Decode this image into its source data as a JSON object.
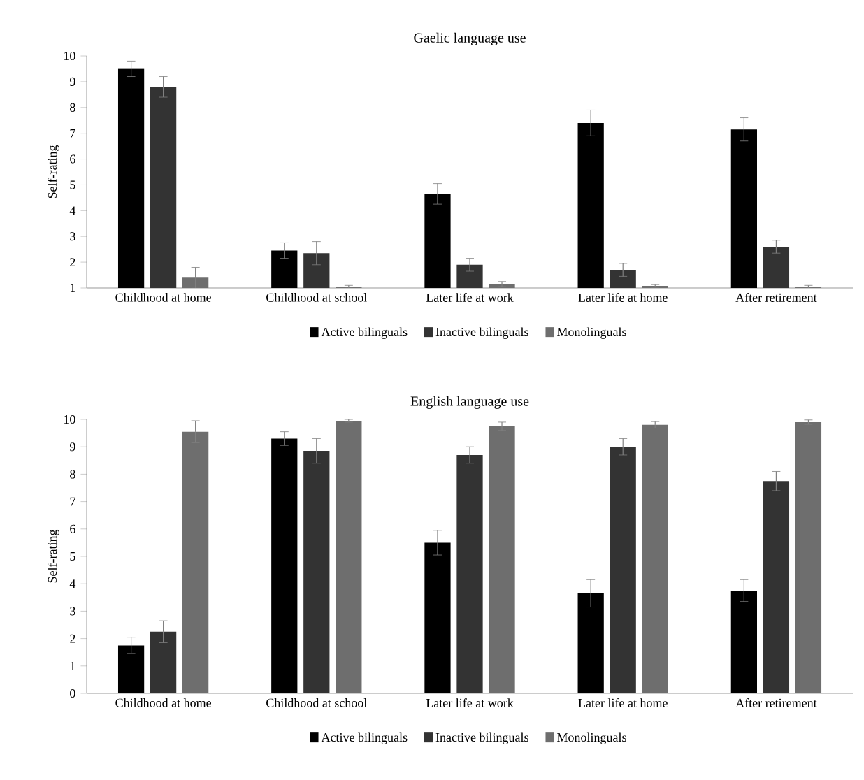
{
  "chart_data": [
    {
      "type": "bar",
      "title": "Gaelic language use",
      "ylabel": "Self-rating",
      "categories": [
        "Childhood at home",
        "Childhood at school",
        "Later life at work",
        "Later life at home",
        "After retirement"
      ],
      "series": [
        {
          "name": "Active bilinguals",
          "color": "#000000",
          "values": [
            9.5,
            2.45,
            4.65,
            7.4,
            7.15
          ],
          "errors": [
            0.3,
            0.3,
            0.4,
            0.5,
            0.45
          ]
        },
        {
          "name": "Inactive bilinguals",
          "color": "#333333",
          "values": [
            8.8,
            2.35,
            1.9,
            1.7,
            2.6
          ],
          "errors": [
            0.4,
            0.45,
            0.25,
            0.25,
            0.25
          ]
        },
        {
          "name": "Monolinguals",
          "color": "#6e6e6e",
          "values": [
            1.4,
            1.05,
            1.15,
            1.08,
            1.05
          ],
          "errors": [
            0.4,
            0.05,
            0.1,
            0.05,
            0.05
          ]
        }
      ],
      "ylim": [
        1,
        10
      ],
      "yticks": [
        1,
        2,
        3,
        4,
        5,
        6,
        7,
        8,
        9,
        10
      ],
      "legend": "bottom"
    },
    {
      "type": "bar",
      "title": "English language use",
      "ylabel": "Self-rating",
      "categories": [
        "Childhood at home",
        "Childhood at school",
        "Later life at work",
        "Later life at home",
        "After retirement"
      ],
      "series": [
        {
          "name": "Active bilinguals",
          "color": "#000000",
          "values": [
            1.75,
            9.3,
            5.5,
            3.65,
            3.75
          ],
          "errors": [
            0.3,
            0.25,
            0.45,
            0.5,
            0.4
          ]
        },
        {
          "name": "Inactive bilinguals",
          "color": "#333333",
          "values": [
            2.25,
            8.85,
            8.7,
            9.0,
            7.75
          ],
          "errors": [
            0.4,
            0.45,
            0.3,
            0.3,
            0.35
          ]
        },
        {
          "name": "Monolinguals",
          "color": "#6e6e6e",
          "values": [
            9.55,
            9.95,
            9.75,
            9.8,
            9.9
          ],
          "errors": [
            0.4,
            0.05,
            0.15,
            0.12,
            0.08
          ]
        }
      ],
      "ylim": [
        0,
        10
      ],
      "yticks": [
        0,
        1,
        2,
        3,
        4,
        5,
        6,
        7,
        8,
        9,
        10
      ],
      "legend": "bottom"
    }
  ]
}
